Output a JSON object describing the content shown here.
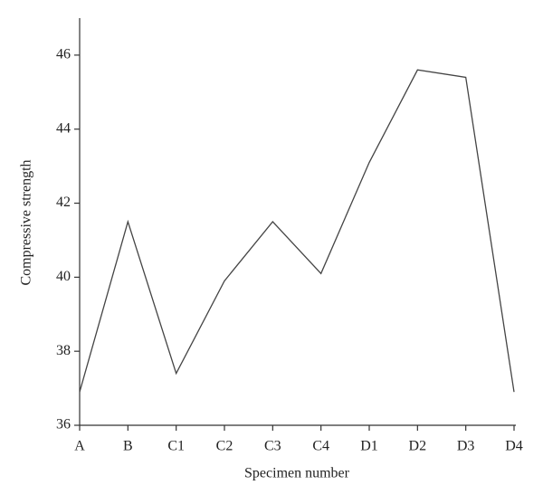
{
  "chart_data": {
    "type": "line",
    "x_label": "Specimen number",
    "y_label": "Compressive strength",
    "categories": [
      "A",
      "B",
      "C1",
      "C2",
      "C3",
      "C4",
      "D1",
      "D2",
      "D3",
      "D4"
    ],
    "values": [
      36.9,
      41.5,
      37.4,
      39.9,
      41.5,
      40.1,
      43.1,
      45.6,
      45.4,
      36.9
    ],
    "color": "#444444",
    "ylim": [
      36,
      47
    ],
    "yticks": [
      36,
      38,
      40,
      42,
      44,
      46
    ],
    "grid": false
  }
}
